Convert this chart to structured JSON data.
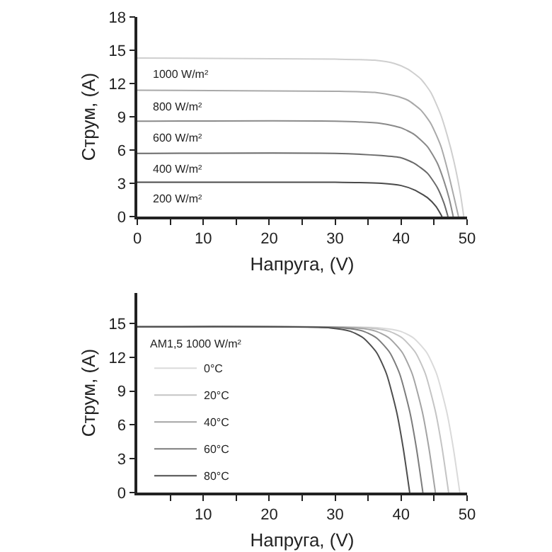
{
  "chart_data": [
    {
      "type": "line",
      "xlabel": "Напруга, (V)",
      "ylabel": "Струм, (A)",
      "xlim": [
        0,
        50
      ],
      "ylim": [
        0,
        18
      ],
      "xticks": [
        0,
        {
          "value": 5,
          "label": null
        },
        10,
        {
          "value": 15,
          "label": null
        },
        20,
        {
          "value": 25,
          "label": null
        },
        30,
        {
          "value": 35,
          "label": null
        },
        40,
        {
          "value": 45,
          "label": null
        },
        50
      ],
      "yticks": [
        0,
        3,
        6,
        9,
        12,
        15,
        18
      ],
      "grid": false,
      "legend": false,
      "marker": "none",
      "line_style": "solid",
      "series": [
        {
          "name": "1000 W/m²",
          "color": "#cfcfcf",
          "x": [
            0,
            30,
            36,
            39,
            41,
            43,
            44.5,
            46,
            47,
            48,
            49,
            49.5
          ],
          "values": [
            14.3,
            14.2,
            14.1,
            13.8,
            13.3,
            12.4,
            11.2,
            9.2,
            7.3,
            5,
            2,
            0
          ]
        },
        {
          "name": "800 W/m²",
          "color": "#a9a9a9",
          "x": [
            0,
            30,
            36,
            39,
            41,
            43,
            44.5,
            46,
            47,
            48,
            48.7
          ],
          "values": [
            11.4,
            11.3,
            11.2,
            10.9,
            10.5,
            9.6,
            8.4,
            6.4,
            4.3,
            1.8,
            0
          ]
        },
        {
          "name": "600 W/m²",
          "color": "#8a8a8a",
          "x": [
            0,
            30,
            37,
            40,
            42,
            44,
            45.5,
            46.5,
            47.3,
            47.9
          ],
          "values": [
            8.6,
            8.6,
            8.4,
            8,
            7.4,
            6.3,
            4.8,
            3.2,
            1.6,
            0
          ]
        },
        {
          "name": "400 W/m²",
          "color": "#6a6a6a",
          "x": [
            0,
            30,
            37,
            40,
            42,
            44,
            45.5,
            46.5,
            47.1
          ],
          "values": [
            5.7,
            5.7,
            5.5,
            5.3,
            4.8,
            3.9,
            2.6,
            1.2,
            0
          ]
        },
        {
          "name": "200 W/m²",
          "color": "#4a4a4a",
          "x": [
            0,
            30,
            37,
            40,
            42,
            44,
            45.3,
            46.2
          ],
          "values": [
            3.1,
            3.1,
            3,
            2.8,
            2.4,
            1.7,
            0.9,
            0
          ]
        }
      ]
    },
    {
      "type": "line",
      "xlabel": "Напруга, (V)",
      "ylabel": "Струм, (A)",
      "legend_title": "AM1,5 1000 W/m²",
      "xlim": [
        0,
        50
      ],
      "ylim": [
        0,
        17.7
      ],
      "xticks": [
        {
          "value": 5,
          "label": null
        },
        10,
        {
          "value": 15,
          "label": null
        },
        20,
        {
          "value": 25,
          "label": null
        },
        30,
        {
          "value": 35,
          "label": null
        },
        40,
        {
          "value": 45,
          "label": null
        },
        50
      ],
      "yticks": [
        0,
        3,
        6,
        9,
        12,
        15
      ],
      "grid": false,
      "legend": "left",
      "marker": "none",
      "line_style": "solid",
      "series": [
        {
          "name": "0°C",
          "color": "#dadada",
          "x": [
            0,
            36.9,
            39.9,
            41.9,
            43.9,
            45.4,
            46.9,
            47.9,
            48.9
          ],
          "values": [
            14.7,
            14.6,
            14.3,
            13.7,
            12.4,
            10.5,
            7.2,
            4,
            0
          ]
        },
        {
          "name": "20°C",
          "color": "#c4c4c4",
          "x": [
            0,
            35.2,
            38.2,
            40.2,
            42.2,
            43.7,
            45.2,
            46.2,
            47.2
          ],
          "values": [
            14.7,
            14.6,
            14.3,
            13.7,
            12.4,
            10.5,
            7.2,
            4,
            0
          ]
        },
        {
          "name": "40°C",
          "color": "#a4a4a4",
          "x": [
            0,
            33.2,
            36.2,
            38.2,
            40.2,
            41.7,
            43.2,
            44.2,
            45.2
          ],
          "values": [
            14.7,
            14.6,
            14.3,
            13.7,
            12.4,
            10.5,
            7.2,
            4,
            0
          ]
        },
        {
          "name": "60°C",
          "color": "#7c7c7c",
          "x": [
            0,
            31.3,
            34.3,
            36.3,
            38.3,
            39.8,
            41.3,
            42.3,
            43.3
          ],
          "values": [
            14.7,
            14.6,
            14.3,
            13.7,
            12.4,
            10.5,
            7.2,
            4,
            0
          ]
        },
        {
          "name": "80°C",
          "color": "#4e4e4e",
          "x": [
            0,
            29.3,
            32.3,
            34.3,
            36.3,
            37.8,
            39.3,
            40.3,
            41.3
          ],
          "values": [
            14.7,
            14.6,
            14.3,
            13.7,
            12.4,
            10.5,
            7.2,
            4,
            0
          ]
        }
      ]
    }
  ]
}
